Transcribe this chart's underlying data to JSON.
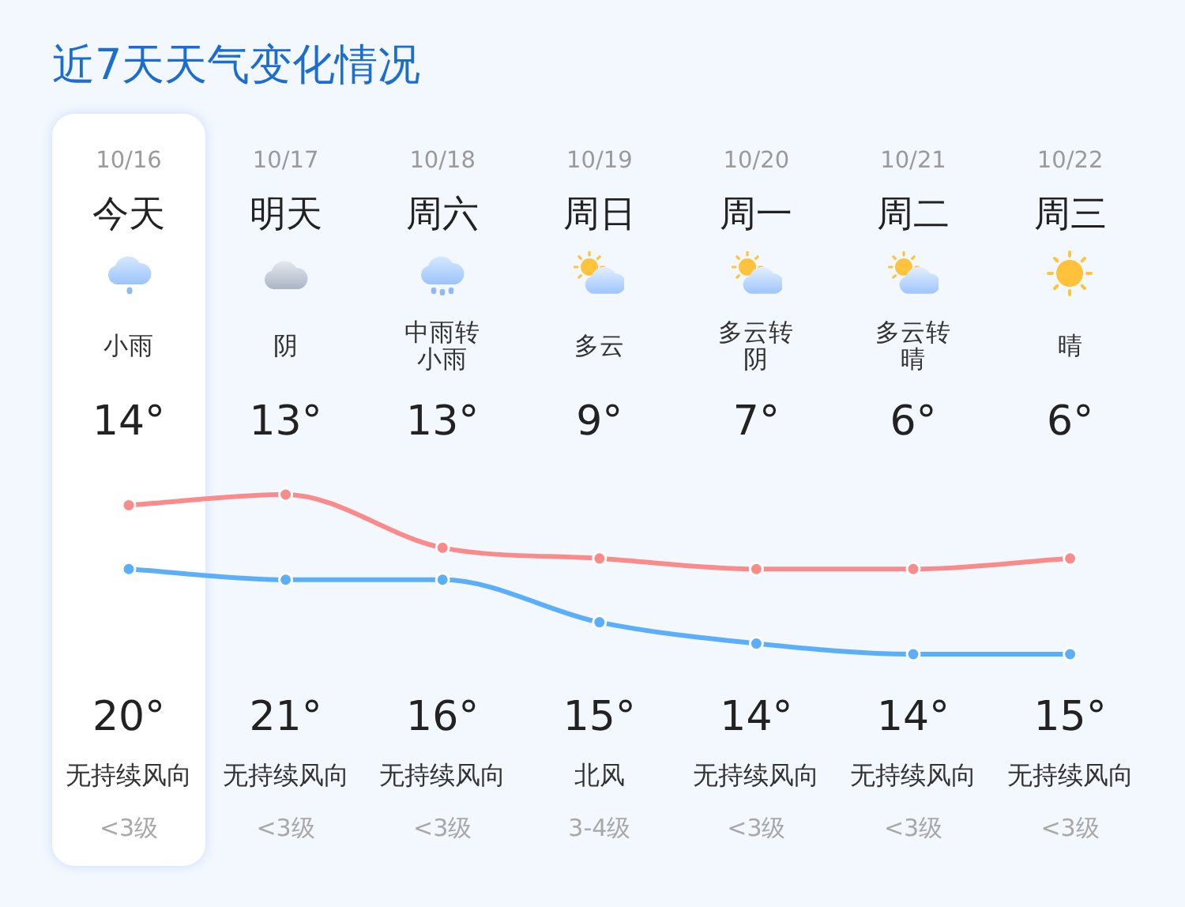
{
  "chart_data": {
    "type": "line",
    "title": "近7天天气变化情况",
    "categories": [
      "10/16",
      "10/17",
      "10/18",
      "10/19",
      "10/20",
      "10/21",
      "10/22"
    ],
    "series": [
      {
        "color": "#5aaefa",
        "values": [
          14,
          13,
          13,
          9,
          7,
          6,
          6
        ],
        "value_labels": [
          "14°",
          "13°",
          "13°",
          "9°",
          "7°",
          "6°",
          "6°"
        ]
      },
      {
        "color": "#f98b8b",
        "values": [
          20,
          21,
          16,
          15,
          14,
          14,
          15
        ],
        "value_labels": [
          "20°",
          "21°",
          "16°",
          "15°",
          "14°",
          "14°",
          "15°"
        ]
      }
    ],
    "marker": "circle",
    "line_style": "solid",
    "tick_labels": "x",
    "annotations": [
      "今天",
      "明天",
      "周六",
      "周日",
      "周一",
      "周二",
      "周三",
      "小雨",
      "阴",
      "中雨转小雨",
      "多云",
      "多云转阴",
      "多云转晴",
      "晴",
      "无持续风向",
      "无持续风向",
      "无持续风向",
      "北风",
      "无持续风向",
      "无持续风向",
      "无持续风向",
      "<3级",
      "<3级",
      "<3级",
      "3-4级",
      "<3级",
      "<3级",
      "<3级"
    ]
  }
}
